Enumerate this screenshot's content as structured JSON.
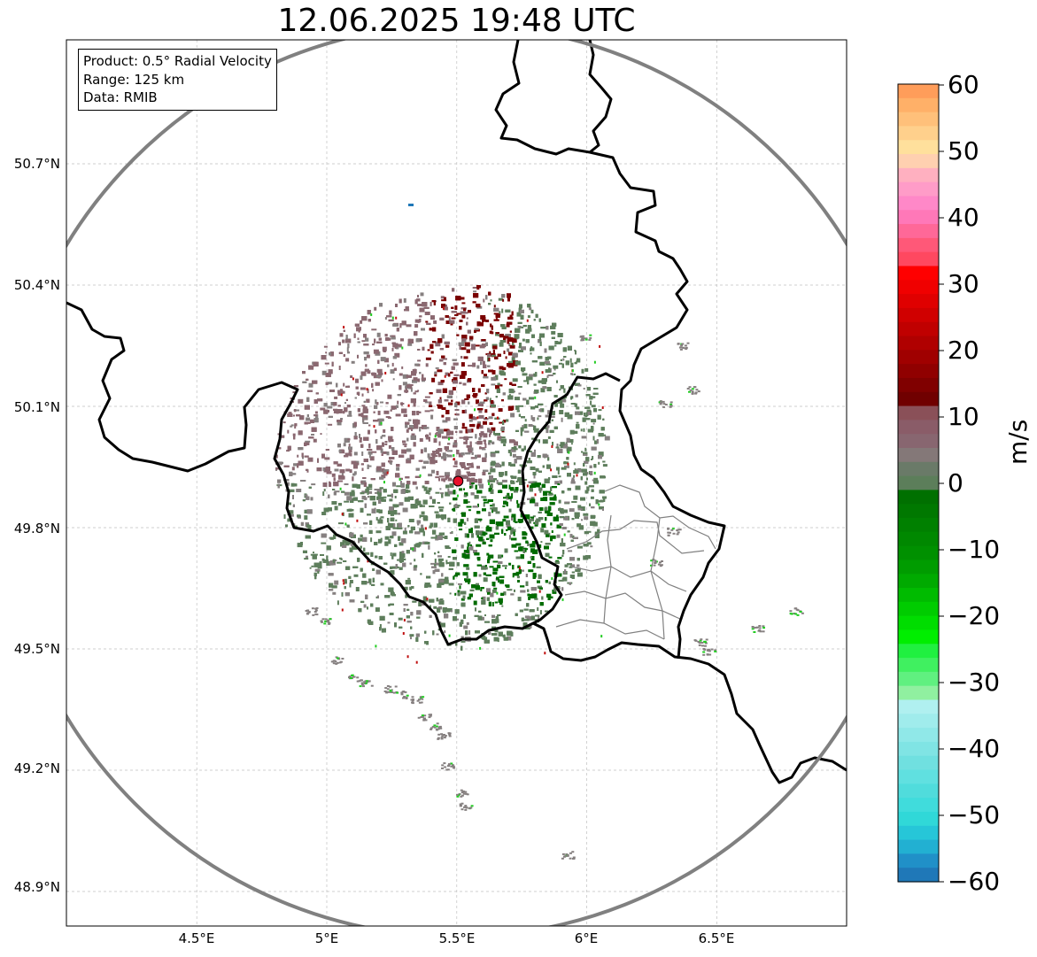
{
  "title": "12.06.2025 19:48 UTC",
  "info_box": {
    "product": "Product: 0.5° Radial Velocity",
    "range": "Range: 125 km",
    "source": "Data: RMIB"
  },
  "map": {
    "lon_range": [
      4.0,
      7.0
    ],
    "lat_range": [
      48.8,
      51.0
    ],
    "lon_ticks": [
      "4.5°E",
      "5°E",
      "5.5°E",
      "6°E",
      "6.5°E"
    ],
    "lat_ticks": [
      "50.7°N",
      "50.4°N",
      "50.1°N",
      "49.8°N",
      "49.5°N",
      "49.2°N",
      "48.9°N"
    ],
    "grid": true,
    "radar_site": {
      "lon": 5.505,
      "lat": 49.915,
      "marker_color": "#e8102a"
    },
    "range_ring_color": "#808080",
    "border_color": "#000000",
    "subdivision_color": "#808080"
  },
  "colorbar": {
    "label": "m/s",
    "ticks": [
      "60",
      "50",
      "40",
      "30",
      "20",
      "10",
      "0",
      "−10",
      "−20",
      "−30",
      "−40",
      "−50",
      "−60"
    ],
    "range": [
      -60,
      60
    ],
    "colors_top_to_bottom": [
      "#ff9d5a",
      "#ffb068",
      "#ffc07a",
      "#ffd08c",
      "#ffe09c",
      "#ffd0b0",
      "#ffb0c0",
      "#ff9cc8",
      "#ff88c8",
      "#ff78b8",
      "#ff6898",
      "#ff5878",
      "#ff4860",
      "#ff0000",
      "#f00000",
      "#e00000",
      "#d00000",
      "#c00000",
      "#b00000",
      "#a00000",
      "#900000",
      "#800000",
      "#700000",
      "#8a5058",
      "#8a5c68",
      "#886670",
      "#847878",
      "#6a7a68",
      "#5c7e5a",
      "#007000",
      "#007800",
      "#008000",
      "#008800",
      "#009000",
      "#009c00",
      "#00aa00",
      "#00bb00",
      "#00cc00",
      "#00dd00",
      "#00ee00",
      "#20f040",
      "#40f060",
      "#60f080",
      "#90f0a0",
      "#b0f0f0",
      "#a0ecec",
      "#90e8e8",
      "#80e4e4",
      "#70e0e0",
      "#60e0e0",
      "#50dcdc",
      "#40dcdc",
      "#30d8d8",
      "#26c6d8",
      "#22b0d2",
      "#2090c8",
      "#1f78b8"
    ]
  },
  "echo_colors": {
    "receding_strong": "#7a0000",
    "receding_weak": "#8a6870",
    "neutral": "#868080",
    "approaching_weak": "#5e7e5c",
    "approaching_strong": "#006b00",
    "noise_green": "#22cc22",
    "noise_red": "#c01010"
  }
}
